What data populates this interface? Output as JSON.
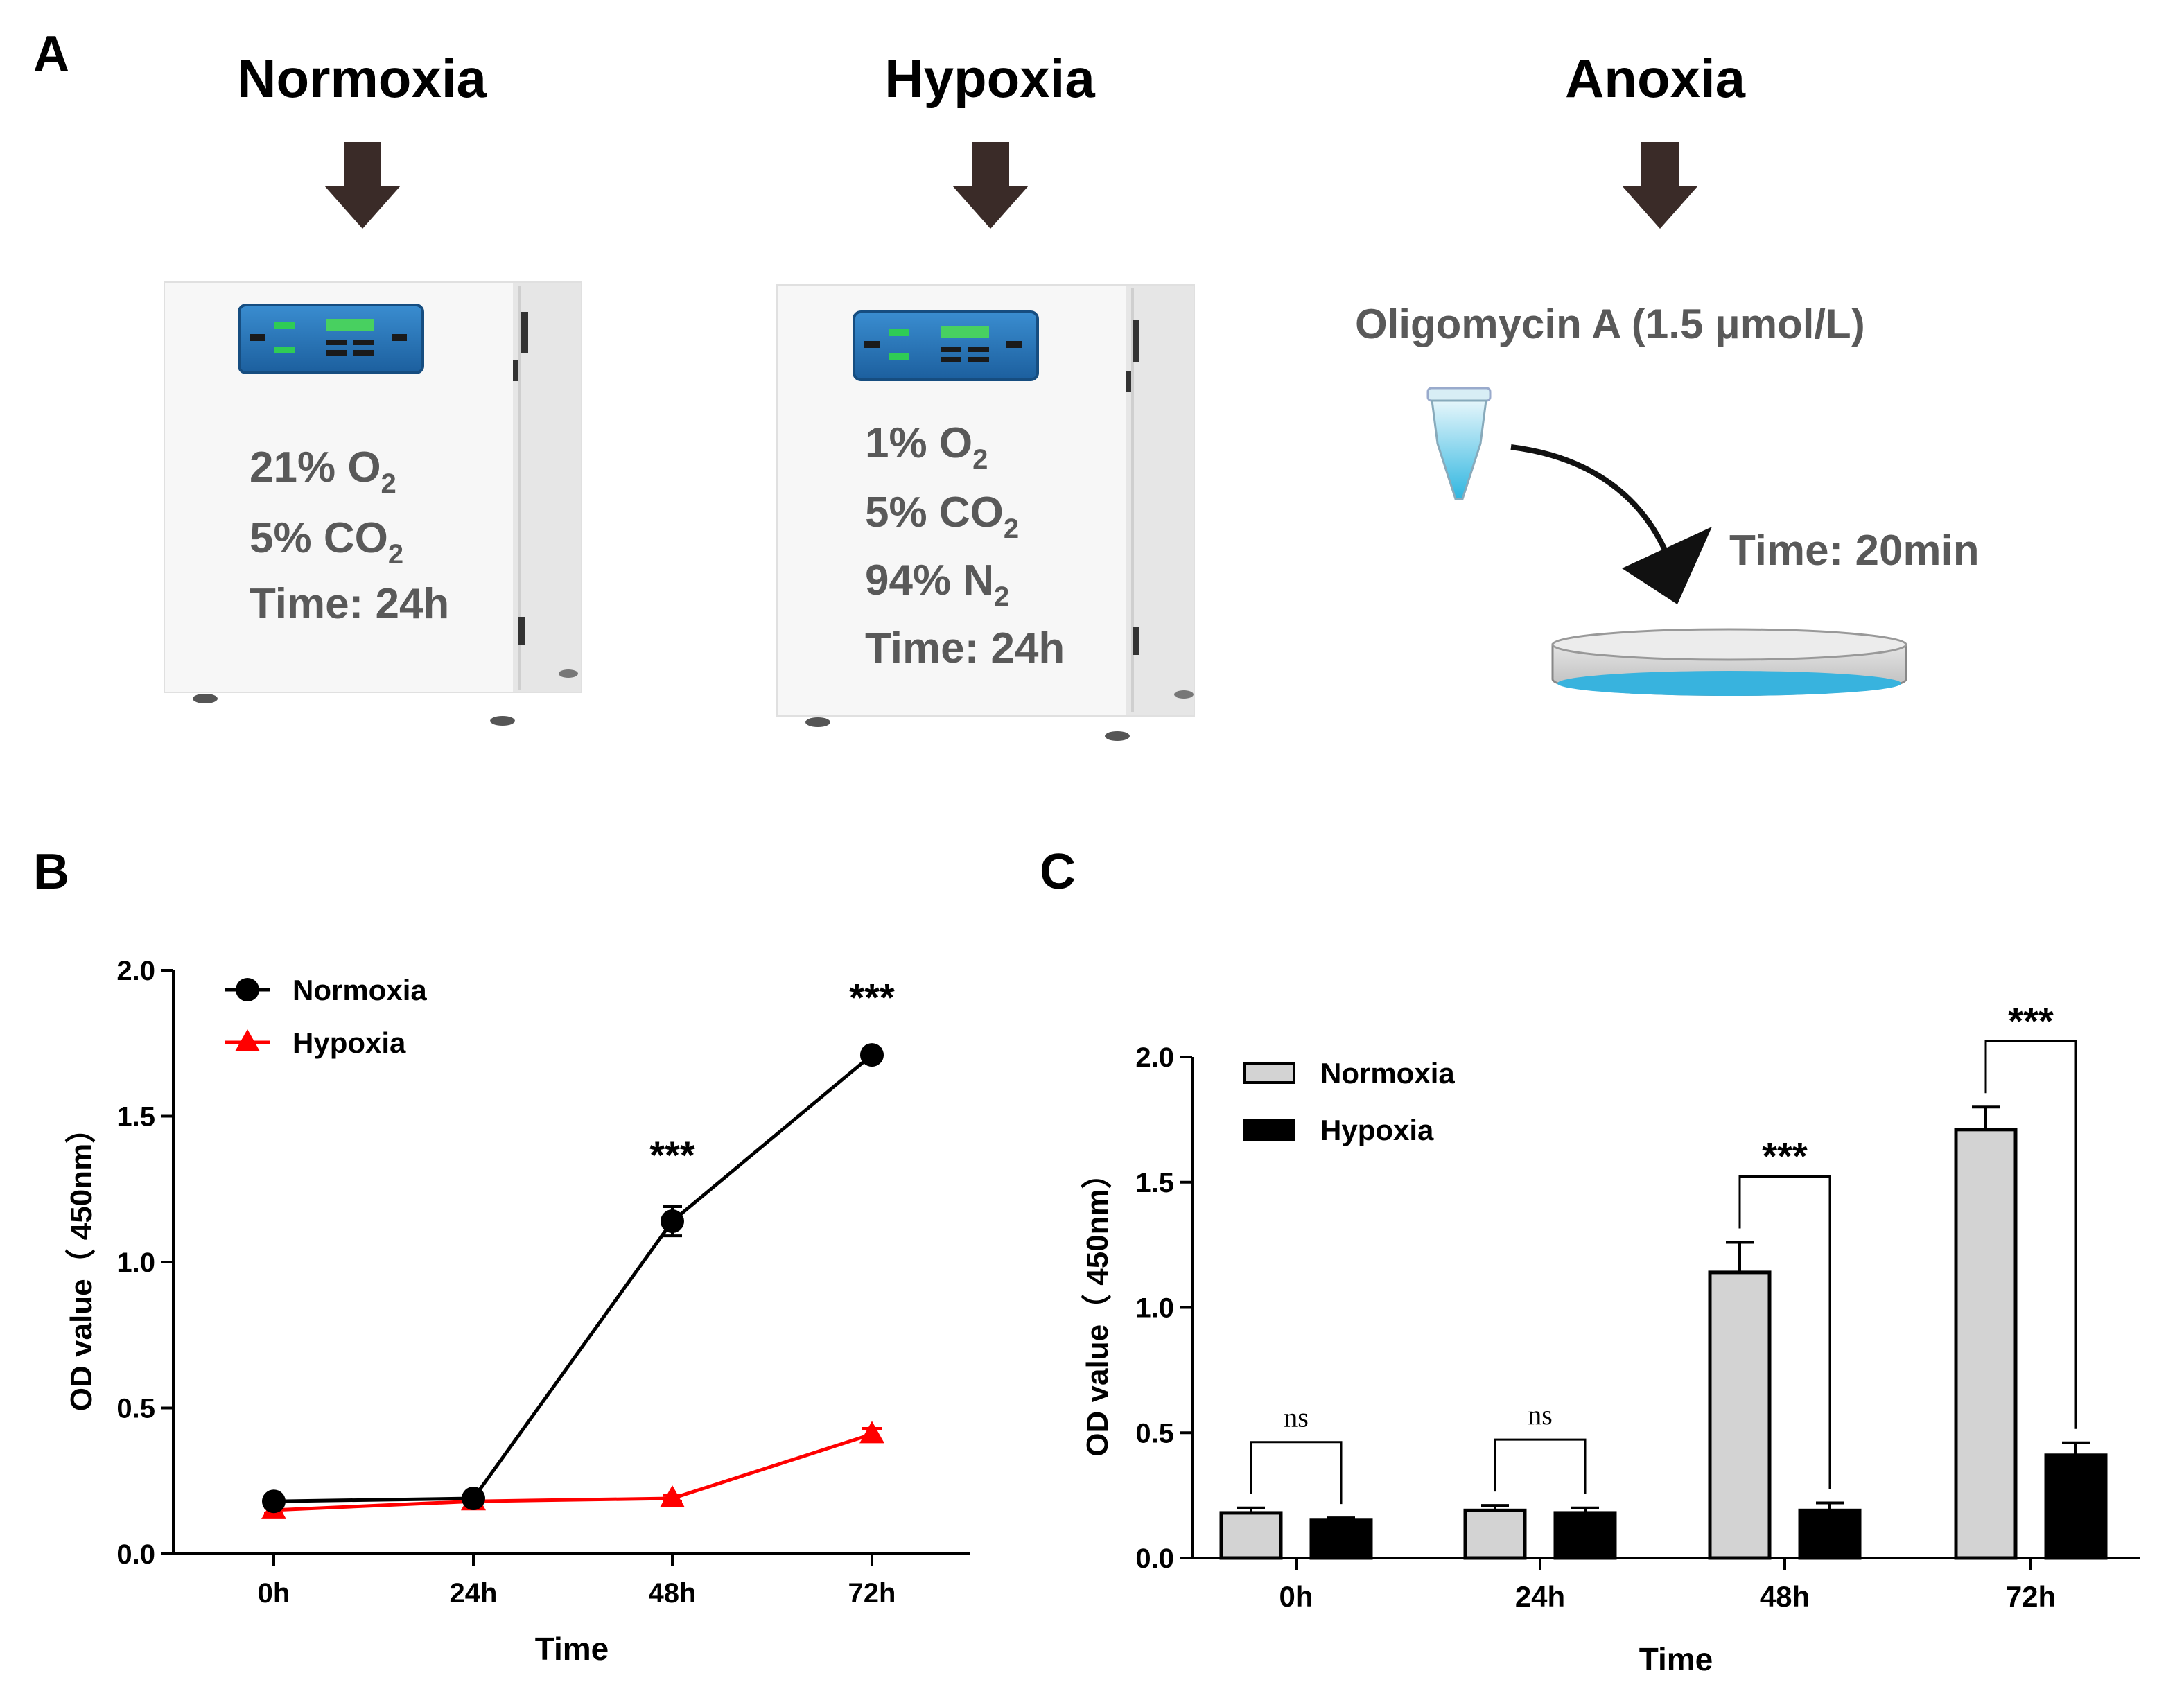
{
  "panels": {
    "a": {
      "letter": "A",
      "conditions": [
        {
          "title": "Normoxia",
          "lines": [
            {
              "pre": "21% O",
              "sub": "2"
            },
            {
              "pre": "5% CO",
              "sub": "2"
            },
            {
              "pre": "Time: 24h",
              "sub": ""
            }
          ]
        },
        {
          "title": "Hypoxia",
          "lines": [
            {
              "pre": "1% O",
              "sub": "2"
            },
            {
              "pre": "5% CO",
              "sub": "2"
            },
            {
              "pre": "94% N",
              "sub": "2"
            },
            {
              "pre": "Time: 24h",
              "sub": ""
            }
          ]
        },
        {
          "title": "Anoxia",
          "reagent": "Oligomycin A (1.5 μmol/L)",
          "time": "Time: 20min"
        }
      ]
    },
    "b": {
      "letter": "B"
    },
    "c": {
      "letter": "C"
    }
  },
  "chart_data": [
    {
      "type": "line",
      "panel": "B",
      "categories": [
        "0h",
        "24h",
        "48h",
        "72h"
      ],
      "xlabel": "Time",
      "ylabel": "OD value（ 450nm）",
      "ylim": [
        0,
        2.0
      ],
      "yticks": [
        "0.0",
        "0.5",
        "1.0",
        "1.5",
        "2.0"
      ],
      "legend_position": "top-left",
      "series": [
        {
          "name": "Normoxia",
          "marker": "circle",
          "color": "#000000",
          "values": [
            0.18,
            0.19,
            1.14,
            1.71
          ],
          "errors": [
            0.01,
            0.01,
            0.05,
            0.02
          ]
        },
        {
          "name": "Hypoxia",
          "marker": "triangle",
          "color": "#ff0000",
          "values": [
            0.15,
            0.18,
            0.19,
            0.41
          ],
          "errors": [
            0.01,
            0.01,
            0.01,
            0.02
          ]
        }
      ],
      "annotations": [
        {
          "category": "48h",
          "text": "***"
        },
        {
          "category": "72h",
          "text": "***"
        }
      ]
    },
    {
      "type": "bar",
      "panel": "C",
      "categories": [
        "0h",
        "24h",
        "48h",
        "72h"
      ],
      "xlabel": "Time",
      "ylabel": "OD value（ 450nm）",
      "ylim": [
        0,
        2.0
      ],
      "yticks": [
        "0.0",
        "0.5",
        "1.0",
        "1.5",
        "2.0"
      ],
      "legend_position": "top-left",
      "series": [
        {
          "name": "Normoxia",
          "color": "#d3d3d3",
          "values": [
            0.18,
            0.19,
            1.14,
            1.71
          ],
          "errors": [
            0.02,
            0.02,
            0.12,
            0.09
          ]
        },
        {
          "name": "Hypoxia",
          "color": "#000000",
          "values": [
            0.15,
            0.18,
            0.19,
            0.41
          ],
          "errors": [
            0.01,
            0.02,
            0.03,
            0.05
          ]
        }
      ],
      "significance": [
        "ns",
        "ns",
        "***",
        "***"
      ]
    }
  ]
}
